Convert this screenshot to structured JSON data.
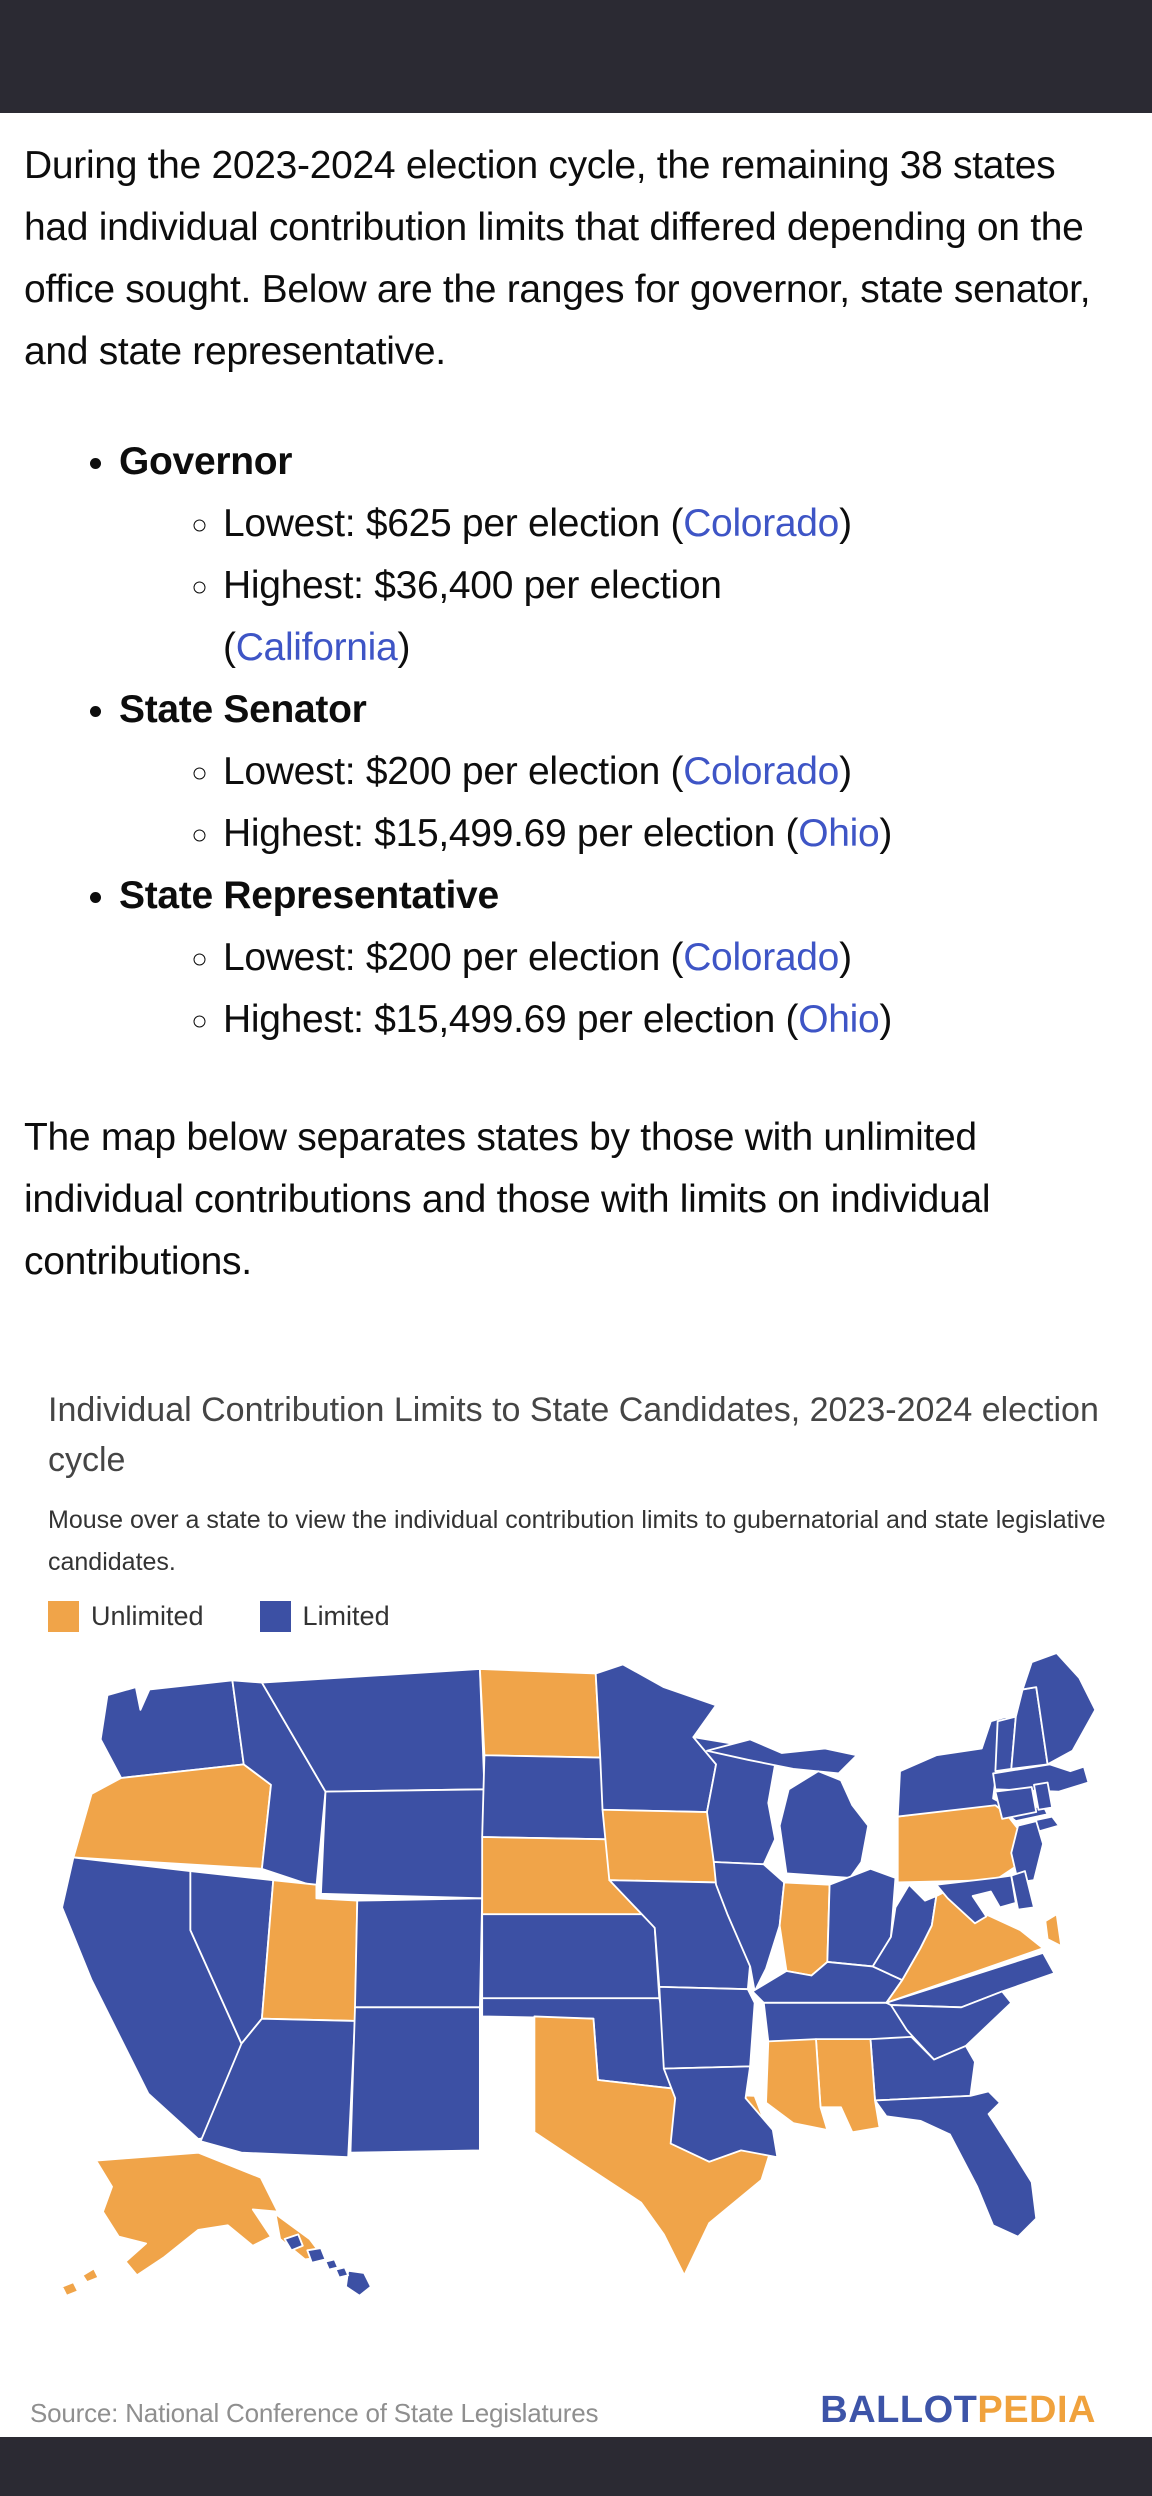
{
  "page": {
    "chrome_bar_color": "#2B2A33",
    "background": "#FFFFFF",
    "link_color": "#3E55C6"
  },
  "article": {
    "intro": "During the 2023-2024 election cycle, the remaining 38 states had individual contribution limits that differed depending on the office sought. Below are the ranges for governor, state senator, and state representative.",
    "offices": [
      {
        "name": "Governor",
        "bullets": [
          {
            "pre": "Lowest: $625 per election (",
            "link": "Colorado",
            "post": ")"
          },
          {
            "pre": "Highest: $36,400 per election",
            "pre2": "(",
            "link": "California",
            "post": ")"
          }
        ]
      },
      {
        "name": "State Senator",
        "bullets": [
          {
            "pre": "Lowest: $200 per election (",
            "link": "Colorado",
            "post": ")"
          },
          {
            "pre": "Highest: $15,499.69 per election (",
            "link": "Ohio",
            "post": ")"
          }
        ]
      },
      {
        "name": "State Representative",
        "bullets": [
          {
            "pre": "Lowest: $200 per election (",
            "link": "Colorado",
            "post": ")"
          },
          {
            "pre": "Highest: $15,499.69 per election (",
            "link": "Ohio",
            "post": ")"
          }
        ]
      }
    ],
    "map_intro": "The map below separates states by those with unlimited individual contributions and those with limits on individual contributions."
  },
  "map_widget": {
    "title": "Individual Contribution Limits to State Candidates, 2023-2024 election cycle",
    "subtitle": "Mouse over a state to view the individual contribution limits to gubernatorial and state legislative candidates.",
    "legend": {
      "unlimited_label": "Unlimited",
      "limited_label": "Limited",
      "unlimited_color": "#F0A449",
      "limited_color": "#3C50A4"
    },
    "source": "Source: National Conference of State Legislatures",
    "logo": {
      "ballot": "BALLOT",
      "pedia": "PEDIA",
      "ballot_color": "#3D54A8",
      "pedia_color": "#F0A23D"
    },
    "states": [
      {
        "id": "WA",
        "name": "Washington",
        "status": "limited"
      },
      {
        "id": "OR",
        "name": "Oregon",
        "status": "unlimited"
      },
      {
        "id": "CA",
        "name": "California",
        "status": "limited"
      },
      {
        "id": "NV",
        "name": "Nevada",
        "status": "limited"
      },
      {
        "id": "ID",
        "name": "Idaho",
        "status": "limited"
      },
      {
        "id": "MT",
        "name": "Montana",
        "status": "limited"
      },
      {
        "id": "WY",
        "name": "Wyoming",
        "status": "limited"
      },
      {
        "id": "UT",
        "name": "Utah",
        "status": "unlimited"
      },
      {
        "id": "CO",
        "name": "Colorado",
        "status": "limited"
      },
      {
        "id": "AZ",
        "name": "Arizona",
        "status": "limited"
      },
      {
        "id": "NM",
        "name": "New Mexico",
        "status": "limited"
      },
      {
        "id": "ND",
        "name": "North Dakota",
        "status": "unlimited"
      },
      {
        "id": "SD",
        "name": "South Dakota",
        "status": "limited"
      },
      {
        "id": "NE",
        "name": "Nebraska",
        "status": "unlimited"
      },
      {
        "id": "KS",
        "name": "Kansas",
        "status": "limited"
      },
      {
        "id": "OK",
        "name": "Oklahoma",
        "status": "limited"
      },
      {
        "id": "TX",
        "name": "Texas",
        "status": "unlimited"
      },
      {
        "id": "MN",
        "name": "Minnesota",
        "status": "limited"
      },
      {
        "id": "IA",
        "name": "Iowa",
        "status": "unlimited"
      },
      {
        "id": "MO",
        "name": "Missouri",
        "status": "limited"
      },
      {
        "id": "AR",
        "name": "Arkansas",
        "status": "limited"
      },
      {
        "id": "LA",
        "name": "Louisiana",
        "status": "limited"
      },
      {
        "id": "WI",
        "name": "Wisconsin",
        "status": "limited"
      },
      {
        "id": "IL",
        "name": "Illinois",
        "status": "limited"
      },
      {
        "id": "MI",
        "name": "Michigan",
        "status": "limited"
      },
      {
        "id": "IN",
        "name": "Indiana",
        "status": "unlimited"
      },
      {
        "id": "OH",
        "name": "Ohio",
        "status": "limited"
      },
      {
        "id": "KY",
        "name": "Kentucky",
        "status": "limited"
      },
      {
        "id": "TN",
        "name": "Tennessee",
        "status": "limited"
      },
      {
        "id": "WV",
        "name": "West Virginia",
        "status": "limited"
      },
      {
        "id": "VA",
        "name": "Virginia",
        "status": "unlimited"
      },
      {
        "id": "NC",
        "name": "North Carolina",
        "status": "limited"
      },
      {
        "id": "SC",
        "name": "South Carolina",
        "status": "limited"
      },
      {
        "id": "GA",
        "name": "Georgia",
        "status": "limited"
      },
      {
        "id": "AL",
        "name": "Alabama",
        "status": "unlimited"
      },
      {
        "id": "MS",
        "name": "Mississippi",
        "status": "unlimited"
      },
      {
        "id": "FL",
        "name": "Florida",
        "status": "limited"
      },
      {
        "id": "PA",
        "name": "Pennsylvania",
        "status": "unlimited"
      },
      {
        "id": "NY",
        "name": "New York",
        "status": "limited"
      },
      {
        "id": "NJ",
        "name": "New Jersey",
        "status": "limited"
      },
      {
        "id": "MD",
        "name": "Maryland",
        "status": "limited"
      },
      {
        "id": "DE",
        "name": "Delaware",
        "status": "limited"
      },
      {
        "id": "VT",
        "name": "Vermont",
        "status": "limited"
      },
      {
        "id": "NH",
        "name": "New Hampshire",
        "status": "limited"
      },
      {
        "id": "ME",
        "name": "Maine",
        "status": "limited"
      },
      {
        "id": "MA",
        "name": "Massachusetts",
        "status": "limited"
      },
      {
        "id": "CT",
        "name": "Connecticut",
        "status": "limited"
      },
      {
        "id": "RI",
        "name": "Rhode Island",
        "status": "limited"
      },
      {
        "id": "AK",
        "name": "Alaska",
        "status": "unlimited"
      },
      {
        "id": "HI",
        "name": "Hawaii",
        "status": "limited"
      }
    ]
  }
}
